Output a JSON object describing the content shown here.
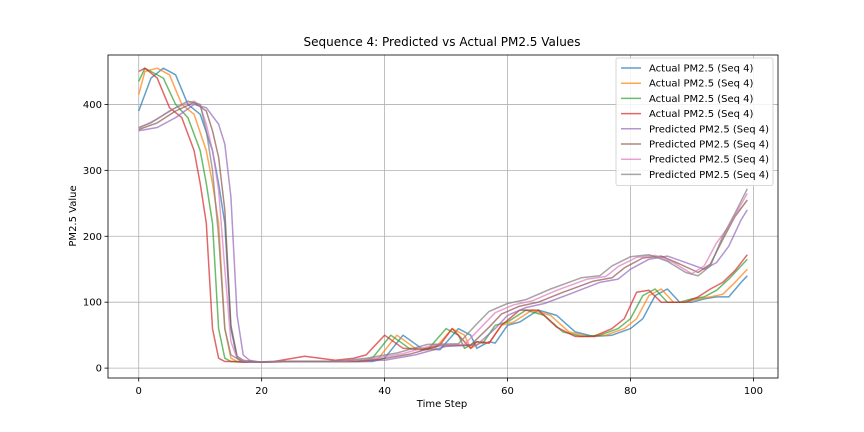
{
  "chart_data": {
    "type": "line",
    "title": "Sequence 4: Predicted vs Actual PM2.5 Values",
    "xlabel": "Time Step",
    "ylabel": "PM2.5 Value",
    "xlim": [
      -5,
      104
    ],
    "ylim": [
      -15,
      475
    ],
    "xticks": [
      0,
      20,
      40,
      60,
      80,
      100
    ],
    "yticks": [
      0,
      100,
      200,
      300,
      400
    ],
    "grid": true,
    "legend_position": "top-right",
    "series": [
      {
        "name": "Actual PM2.5 (Seq 4)",
        "color": "#1f77b4",
        "alpha": 0.7,
        "x": [
          0,
          2,
          4,
          6,
          8,
          10,
          12,
          13,
          14,
          15,
          16,
          17,
          18,
          20,
          25,
          30,
          35,
          38,
          40,
          43,
          46,
          49,
          52,
          54,
          55,
          57,
          58,
          60,
          62,
          65,
          68,
          71,
          74,
          77,
          80,
          82,
          84,
          86,
          88,
          90,
          92,
          94,
          96,
          98,
          99
        ],
        "y": [
          390,
          440,
          455,
          445,
          400,
          385,
          330,
          280,
          220,
          60,
          15,
          10,
          10,
          9,
          10,
          10,
          10,
          10,
          15,
          50,
          30,
          28,
          60,
          50,
          30,
          40,
          38,
          65,
          70,
          88,
          80,
          55,
          48,
          50,
          60,
          75,
          110,
          120,
          100,
          100,
          105,
          108,
          108,
          130,
          140
        ]
      },
      {
        "name": "Actual PM2.5 (Seq 4)",
        "color": "#ff7f0e",
        "alpha": 0.7,
        "x": [
          0,
          1,
          3,
          5,
          7,
          9,
          11,
          12,
          13,
          14,
          15,
          16,
          17,
          19,
          24,
          29,
          34,
          37,
          39,
          42,
          45,
          48,
          51,
          53,
          54,
          56,
          57,
          59,
          61,
          64,
          67,
          70,
          73,
          76,
          79,
          81,
          83,
          85,
          87,
          89,
          91,
          93,
          95,
          97,
          99
        ],
        "y": [
          415,
          450,
          455,
          445,
          400,
          385,
          330,
          280,
          220,
          60,
          15,
          10,
          10,
          9,
          10,
          10,
          10,
          10,
          15,
          50,
          30,
          28,
          60,
          50,
          30,
          40,
          38,
          65,
          70,
          88,
          80,
          55,
          48,
          50,
          60,
          75,
          110,
          120,
          100,
          100,
          105,
          108,
          112,
          130,
          150
        ]
      },
      {
        "name": "Actual PM2.5 (Seq 4)",
        "color": "#2ca02c",
        "alpha": 0.7,
        "x": [
          0,
          1,
          2,
          4,
          6,
          8,
          10,
          11,
          12,
          13,
          14,
          15,
          16,
          18,
          23,
          28,
          33,
          36,
          38,
          41,
          44,
          47,
          50,
          52,
          53,
          55,
          56,
          58,
          60,
          63,
          66,
          69,
          72,
          75,
          78,
          80,
          82,
          84,
          86,
          88,
          90,
          92,
          94,
          96,
          99
        ],
        "y": [
          435,
          455,
          450,
          440,
          400,
          380,
          330,
          280,
          220,
          60,
          15,
          10,
          10,
          9,
          10,
          10,
          10,
          10,
          15,
          50,
          30,
          28,
          60,
          50,
          30,
          40,
          38,
          65,
          70,
          88,
          80,
          55,
          48,
          50,
          60,
          75,
          110,
          120,
          100,
          100,
          105,
          108,
          118,
          135,
          165
        ]
      },
      {
        "name": "Actual PM2.5 (Seq 4)",
        "color": "#d62728",
        "alpha": 0.7,
        "x": [
          0,
          1,
          3,
          5,
          7,
          9,
          10,
          11,
          12,
          13,
          14,
          15,
          17,
          22,
          27,
          32,
          35,
          37,
          40,
          43,
          46,
          49,
          51,
          52,
          54,
          55,
          57,
          59,
          62,
          65,
          68,
          71,
          74,
          77,
          79,
          81,
          83,
          85,
          87,
          89,
          91,
          93,
          95,
          97,
          99
        ],
        "y": [
          450,
          455,
          440,
          395,
          380,
          330,
          280,
          220,
          60,
          15,
          10,
          10,
          9,
          10,
          18,
          12,
          15,
          20,
          50,
          30,
          28,
          35,
          60,
          50,
          30,
          40,
          38,
          65,
          88,
          88,
          62,
          48,
          48,
          60,
          75,
          115,
          118,
          100,
          100,
          100,
          108,
          120,
          130,
          148,
          172
        ]
      },
      {
        "name": "Predicted PM2.5 (Seq 4)",
        "color": "#9467bd",
        "alpha": 0.7,
        "x": [
          0,
          3,
          6,
          9,
          11,
          13,
          14,
          15,
          16,
          17,
          18,
          20,
          25,
          30,
          35,
          40,
          45,
          50,
          55,
          58,
          60,
          63,
          66,
          70,
          75,
          78,
          80,
          83,
          86,
          89,
          92,
          94,
          96,
          98,
          99
        ],
        "y": [
          360,
          365,
          380,
          400,
          395,
          370,
          340,
          260,
          80,
          20,
          12,
          9,
          10,
          10,
          10,
          12,
          20,
          33,
          35,
          60,
          80,
          92,
          98,
          112,
          130,
          135,
          150,
          165,
          170,
          160,
          150,
          160,
          185,
          225,
          240
        ]
      },
      {
        "name": "Predicted PM2.5 (Seq 4)",
        "color": "#8c564b",
        "alpha": 0.7,
        "x": [
          0,
          3,
          6,
          9,
          11,
          12,
          13,
          14,
          15,
          16,
          17,
          19,
          24,
          29,
          34,
          39,
          44,
          49,
          54,
          57,
          59,
          62,
          65,
          69,
          74,
          77,
          79,
          82,
          85,
          88,
          91,
          93,
          95,
          97,
          99
        ],
        "y": [
          362,
          372,
          390,
          403,
          390,
          360,
          320,
          240,
          65,
          18,
          12,
          9,
          10,
          10,
          10,
          13,
          21,
          34,
          35,
          62,
          82,
          94,
          100,
          115,
          132,
          137,
          152,
          167,
          170,
          158,
          145,
          158,
          195,
          230,
          255
        ]
      },
      {
        "name": "Predicted PM2.5 (Seq 4)",
        "color": "#e377c2",
        "alpha": 0.7,
        "x": [
          0,
          3,
          6,
          9,
          10,
          11,
          12,
          13,
          14,
          15,
          16,
          18,
          23,
          28,
          33,
          38,
          43,
          48,
          53,
          56,
          58,
          61,
          64,
          68,
          73,
          76,
          78,
          81,
          84,
          87,
          90,
          92,
          94,
          96,
          99
        ],
        "y": [
          364,
          378,
          395,
          405,
          398,
          370,
          330,
          270,
          150,
          40,
          15,
          9,
          10,
          10,
          10,
          14,
          22,
          35,
          36,
          65,
          84,
          96,
          102,
          118,
          135,
          139,
          154,
          168,
          171,
          160,
          143,
          155,
          190,
          215,
          265
        ]
      },
      {
        "name": "Predicted PM2.5 (Seq 4)",
        "color": "#7f7f7f",
        "alpha": 0.7,
        "x": [
          0,
          2,
          5,
          8,
          10,
          11,
          12,
          13,
          14,
          15,
          17,
          22,
          27,
          32,
          37,
          42,
          47,
          52,
          55,
          57,
          60,
          63,
          67,
          72,
          75,
          77,
          80,
          83,
          86,
          89,
          91,
          93,
          95,
          97,
          99
        ],
        "y": [
          365,
          372,
          390,
          405,
          400,
          360,
          300,
          200,
          60,
          20,
          9,
          10,
          10,
          10,
          15,
          23,
          36,
          37,
          67,
          86,
          98,
          104,
          120,
          137,
          140,
          155,
          169,
          172,
          162,
          145,
          140,
          155,
          200,
          235,
          272
        ]
      }
    ]
  }
}
